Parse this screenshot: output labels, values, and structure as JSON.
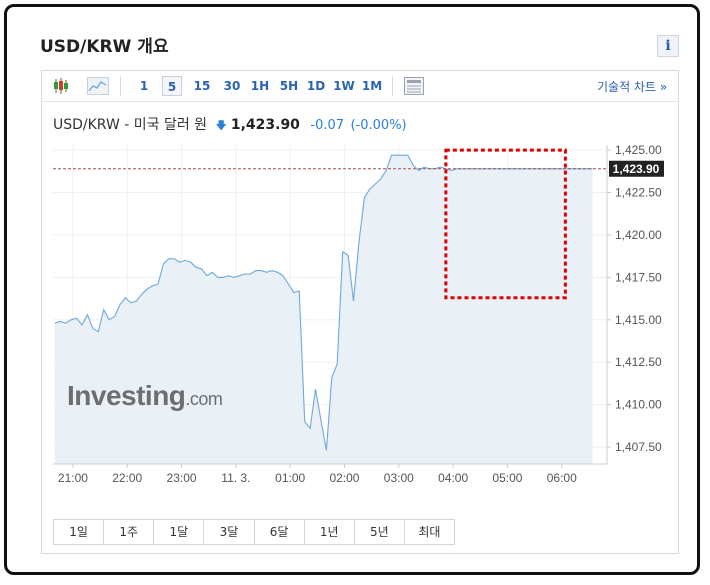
{
  "header": {
    "title": "USD/KRW 개요",
    "info_label": "i"
  },
  "toolbar": {
    "icons": [
      "candlestick-icon",
      "area-chart-icon",
      "table-view-icon"
    ],
    "intervals": [
      "1",
      "5",
      "15",
      "30",
      "1H",
      "5H",
      "1D",
      "1W",
      "1M"
    ],
    "active_interval": "5",
    "advanced_link": "기술적 차트 »"
  },
  "quote": {
    "name": "USD/KRW - 미국 달러 원",
    "price": "1,423.90",
    "change": "-0.07",
    "change_pct": "(-0.00%)",
    "direction_icon": "down-arrow-icon"
  },
  "brand": {
    "logo_main": "Investing",
    "logo_suffix": ".com"
  },
  "colors": {
    "line": "#6fa8dc",
    "area_fill": "#e9f1f7",
    "accent_blue": "#2a62b5",
    "change_blue": "#2a7fd8",
    "current_price_bg": "#222222",
    "reference_line": "#a05050",
    "highlight_box": "#e00000"
  },
  "range_buttons": [
    "1일",
    "1주",
    "1달",
    "3달",
    "6달",
    "1년",
    "5년",
    "최대"
  ],
  "chart_data": {
    "type": "area",
    "x_tick_labels": [
      "21:00",
      "22:00",
      "23:00",
      "11. 3.",
      "01:00",
      "02:00",
      "03:00",
      "04:00",
      "05:00",
      "06:00"
    ],
    "y_tick_labels": [
      "1,425.00",
      "1,422.50",
      "1,420.00",
      "1,417.50",
      "1,415.00",
      "1,412.50",
      "1,410.00",
      "1,407.50"
    ],
    "ylim": [
      1406.5,
      1425.3
    ],
    "current_price": 1423.9,
    "current_price_label": "1,423.90",
    "series": [
      {
        "x": [
          0,
          0.6,
          1.2,
          1.8,
          2.4,
          3,
          3.6,
          4.2,
          4.8,
          5.4,
          6,
          6.6,
          7.2,
          7.8,
          8.4,
          9,
          9.6,
          10.2,
          10.8,
          11.4,
          12,
          12.6,
          13.2,
          13.8,
          14.4,
          15,
          15.6,
          16.2,
          16.8,
          17.4,
          18,
          18.6,
          19.2,
          19.8,
          20.4,
          21,
          21.6,
          22.2,
          22.8,
          23.4,
          24,
          24.6,
          25.2,
          25.8,
          26.4,
          27,
          27.6,
          28.2,
          28.8,
          29.4,
          30,
          30.6,
          31.2,
          31.8,
          32.4,
          33,
          33.6,
          34.2,
          34.8,
          35.4,
          36,
          36.6,
          37.2,
          37.8,
          38.4,
          39,
          39.6,
          40.2,
          40.8,
          41.4,
          42,
          42.6,
          43.2,
          43.8,
          44.4,
          45,
          45.6,
          46.2,
          46.8,
          47.4,
          48,
          48.6,
          49.2,
          49.8,
          50.4,
          51,
          51.6,
          52.2,
          52.8,
          53.4,
          54,
          54.6,
          55.2,
          55.8,
          56.4,
          57,
          57.6,
          58.2,
          58.8,
          59.4
        ],
        "y": [
          1414.8,
          1414.9,
          1414.8,
          1415.0,
          1415.1,
          1414.7,
          1415.3,
          1414.5,
          1414.3,
          1415.6,
          1415.0,
          1415.2,
          1415.9,
          1416.3,
          1416.0,
          1416.1,
          1416.5,
          1416.8,
          1417.0,
          1417.1,
          1418.3,
          1418.6,
          1418.6,
          1418.4,
          1418.5,
          1418.4,
          1418.1,
          1418.0,
          1417.6,
          1417.8,
          1417.5,
          1417.5,
          1417.6,
          1417.5,
          1417.6,
          1417.7,
          1417.7,
          1417.9,
          1417.9,
          1417.8,
          1417.9,
          1417.8,
          1417.6,
          1417.1,
          1416.6,
          1416.7,
          1409.0,
          1408.6,
          1410.9,
          1409.1,
          1407.3,
          1411.6,
          1412.4,
          1419.0,
          1418.8,
          1416.1,
          1419.6,
          1422.2,
          1422.7,
          1423.0,
          1423.3,
          1423.8,
          1424.7,
          1424.7,
          1424.7,
          1424.7,
          1424.1,
          1423.8,
          1424.0,
          1423.9,
          1423.9,
          1424.0,
          1423.9,
          1423.8,
          1423.9,
          1423.9,
          1423.9,
          1423.9,
          1423.9,
          1423.9,
          1423.9,
          1423.9,
          1423.9,
          1423.9,
          1423.9,
          1423.9,
          1423.9,
          1423.9,
          1423.9,
          1423.9,
          1423.9,
          1423.9,
          1423.9,
          1423.9,
          1423.9,
          1423.9,
          1423.9,
          1423.9,
          1423.9,
          1423.9
        ]
      }
    ],
    "grid": true,
    "highlight_box": {
      "x_range": [
        43.2,
        56.4
      ],
      "y_range": [
        1416.3,
        1425.0
      ]
    }
  }
}
